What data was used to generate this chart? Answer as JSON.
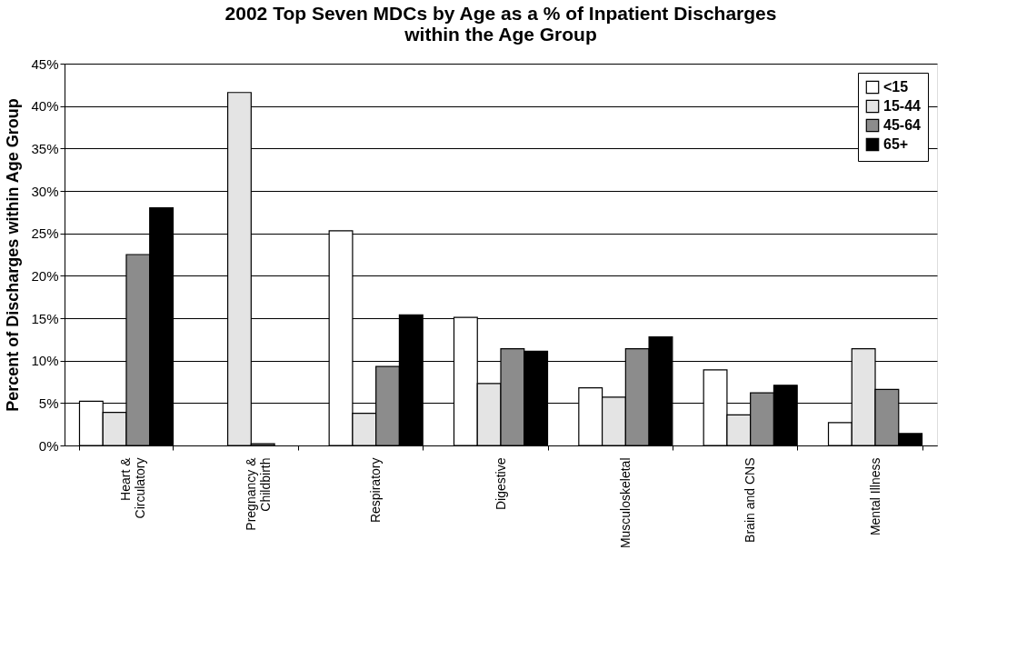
{
  "chart_data": {
    "type": "bar",
    "title": "2002 Top Seven MDCs by Age as a % of Inpatient Discharges\nwithin the Age Group",
    "ylabel": "Percent of Discharges within Age Group",
    "categories": [
      "Heart &\nCirculatory",
      "Pregnancy &\nChildbirth",
      "Respiratory",
      "Digestive",
      "Musculoskeletal",
      "Brain and CNS",
      "Mental Illness"
    ],
    "series": [
      {
        "name": "<15",
        "color": "#ffffff",
        "values": [
          5.2,
          null,
          25.3,
          15.1,
          6.8,
          8.9,
          2.7
        ]
      },
      {
        "name": "15-44",
        "color": "#e4e4e4",
        "values": [
          3.9,
          41.6,
          3.8,
          7.3,
          5.7,
          3.6,
          11.4
        ]
      },
      {
        "name": "45-64",
        "color": "#8c8c8c",
        "values": [
          22.5,
          0.2,
          9.3,
          11.4,
          11.4,
          6.2,
          6.6
        ]
      },
      {
        "name": "65+",
        "color": "#000000",
        "values": [
          28.0,
          null,
          15.4,
          11.1,
          12.8,
          7.1,
          1.4
        ]
      }
    ],
    "ylim": [
      0,
      45
    ],
    "yticks": [
      {
        "value": 0,
        "label": "0%"
      },
      {
        "value": 5,
        "label": "5%"
      },
      {
        "value": 10,
        "label": "10%"
      },
      {
        "value": 15,
        "label": "15%"
      },
      {
        "value": 20,
        "label": "20%"
      },
      {
        "value": 25,
        "label": "25%"
      },
      {
        "value": 30,
        "label": "30%"
      },
      {
        "value": 35,
        "label": "35%"
      },
      {
        "value": 40,
        "label": "40%"
      },
      {
        "value": 45,
        "label": "45%"
      }
    ],
    "grid": "y",
    "legend": "top right"
  }
}
